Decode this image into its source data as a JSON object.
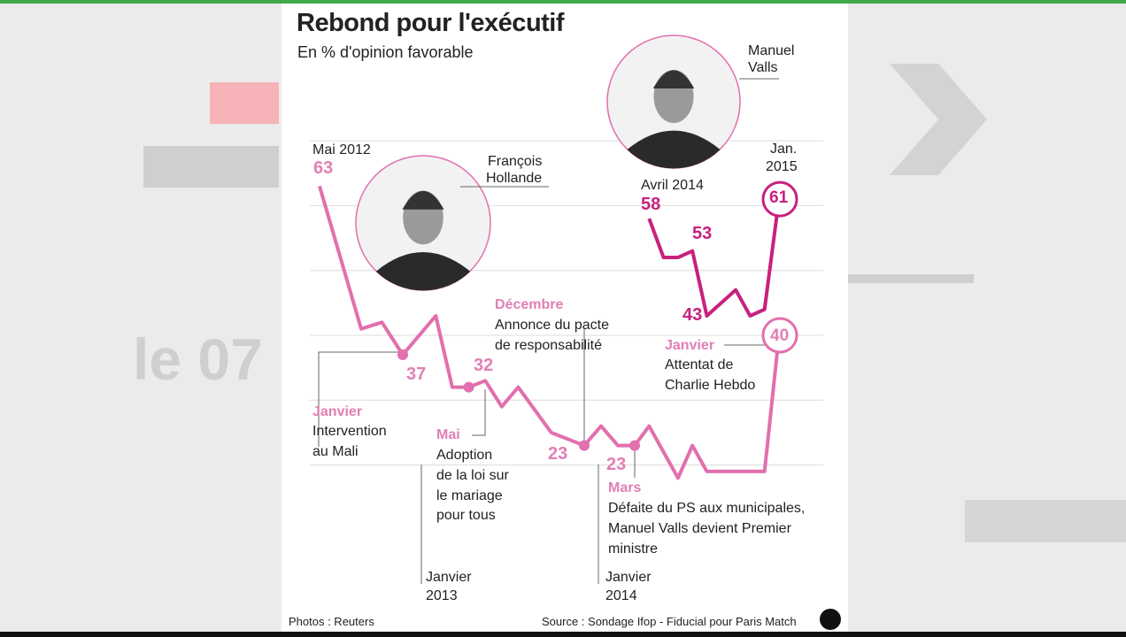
{
  "background": {
    "tv_text": "le 07"
  },
  "chart_data": {
    "type": "line",
    "title": "Rebond pour l'exécutif",
    "subtitle": "En % d'opinion favorable",
    "ylim": [
      20,
      70
    ],
    "grid": true,
    "series": [
      {
        "name": "François Hollande",
        "color": "#e26fae",
        "points": [
          [
            "2012-05",
            63
          ],
          [
            "2012-09",
            41
          ],
          [
            "2012-11",
            42
          ],
          [
            "2013-01",
            37
          ],
          [
            "2013-03",
            43
          ],
          [
            "2013-04",
            32
          ],
          [
            "2013-05",
            32
          ],
          [
            "2013-06",
            33
          ],
          [
            "2013-07",
            29
          ],
          [
            "2013-08",
            32
          ],
          [
            "2013-10",
            25
          ],
          [
            "2013-12",
            23
          ],
          [
            "2014-01",
            26
          ],
          [
            "2014-02",
            23
          ],
          [
            "2014-03",
            23
          ],
          [
            "2014-04",
            26
          ],
          [
            "2014-06",
            18
          ],
          [
            "2014-07",
            23
          ],
          [
            "2014-08",
            19
          ],
          [
            "2014-12",
            19
          ],
          [
            "2015-01",
            40
          ]
        ]
      },
      {
        "name": "Manuel Valls",
        "color": "#c8207f",
        "points": [
          [
            "2014-04",
            58
          ],
          [
            "2014-05",
            52
          ],
          [
            "2014-06",
            52
          ],
          [
            "2014-07",
            53
          ],
          [
            "2014-08",
            43
          ],
          [
            "2014-10",
            47
          ],
          [
            "2014-11",
            43
          ],
          [
            "2014-12",
            44
          ],
          [
            "2015-01",
            61
          ]
        ]
      }
    ],
    "x_tick_labels": [
      {
        "line1": "Janvier",
        "line2": "2013"
      },
      {
        "line1": "Janvier",
        "line2": "2014"
      }
    ],
    "value_labels": {
      "may2012_label": "Mai 2012",
      "may2012_value": "63",
      "jan2013": "37",
      "may2013": "32",
      "dec2013": "23",
      "mar2014": "23",
      "apr2014_label": "Avril 2014",
      "apr2014_value": "58",
      "valls_53": "53",
      "valls_43": "43",
      "jan2015_label1": "Jan.",
      "jan2015_label2": "2015",
      "jan2015_valls": "61",
      "jan2015_hollande": "40"
    },
    "annotations": [
      {
        "month": "Janvier",
        "lines": [
          "Intervention",
          "au Mali"
        ]
      },
      {
        "month": "Mai",
        "lines": [
          "Adoption",
          "de la loi sur",
          "le mariage",
          "pour tous"
        ]
      },
      {
        "month": "Décembre",
        "lines": [
          "Annonce du pacte",
          "de responsabilité"
        ]
      },
      {
        "month": "Mars",
        "lines": [
          "Défaite du PS aux municipales,",
          "Manuel Valls devient Premier",
          "ministre"
        ]
      },
      {
        "month": "Janvier",
        "lines": [
          "Attentat de",
          "Charlie Hebdo"
        ]
      }
    ],
    "portraits": {
      "hollande": [
        "François",
        "Hollande"
      ],
      "valls": [
        "Manuel",
        "Valls"
      ]
    },
    "credits": {
      "photos": "Photos : Reuters",
      "source": "Source : Sondage Ifop - Fiducial pour Paris Match",
      "logo": "idé"
    }
  }
}
